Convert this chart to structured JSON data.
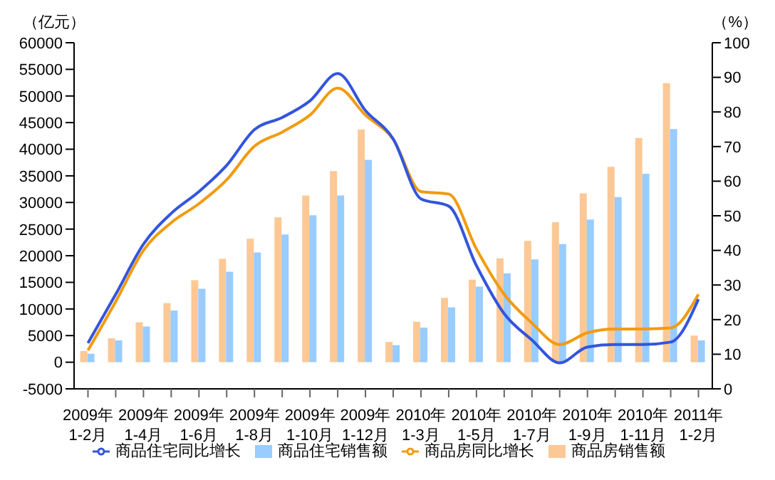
{
  "chart_data": {
    "type": "bar",
    "ylabel": "（亿元）",
    "y2label": "（%）",
    "categories": [
      "2009年\n1-2月",
      null,
      "2009年\n1-4月",
      null,
      "2009年\n1-6月",
      null,
      "2009年\n1-8月",
      null,
      "2009年\n1-10月",
      null,
      "2009年\n1-12月",
      null,
      "2010年\n1-3月",
      null,
      "2010年\n1-5月",
      null,
      "2010年\n1-7月",
      null,
      "2010年\n1-9月",
      null,
      "2010年\n1-11月",
      null,
      "2011年\n1-2月"
    ],
    "series": [
      {
        "name": "商品房销售额",
        "color": "#fcc896",
        "values": [
          2100,
          4500,
          7500,
          11100,
          15400,
          19400,
          23200,
          27200,
          31300,
          35900,
          43700,
          3800,
          7600,
          12100,
          15500,
          19500,
          22800,
          26300,
          31700,
          36700,
          42100,
          52400,
          5000
        ]
      },
      {
        "name": "商品住宅销售额",
        "color": "#99ccff",
        "values": [
          1600,
          4100,
          6700,
          9700,
          13800,
          17000,
          20600,
          24000,
          27600,
          31300,
          38000,
          3200,
          6500,
          10300,
          14200,
          16700,
          19300,
          22200,
          26800,
          31000,
          35400,
          43800,
          4100
        ]
      },
      {
        "name": "商品房同比增长",
        "type": "line",
        "axis": "y2",
        "color": "#f29b0e",
        "values": [
          11.1,
          25.2,
          40.0,
          48.0,
          53.5,
          60.4,
          70.1,
          74.2,
          79.1,
          86.9,
          79.1,
          72.1,
          57.0,
          56.3,
          40.4,
          27.3,
          19.0,
          12.8,
          16.2,
          17.3,
          17.3,
          17.6,
          27.3
        ]
      },
      {
        "name": "商品住宅同比增长",
        "type": "line",
        "axis": "y2",
        "color": "#3355dd",
        "values": [
          13.2,
          27.3,
          41.8,
          50.7,
          57.0,
          64.6,
          74.9,
          78.4,
          83.2,
          91.1,
          80.4,
          72.2,
          54.9,
          52.8,
          35.6,
          21.7,
          14.1,
          7.5,
          12.1,
          12.8,
          12.8,
          13.5,
          25.9
        ]
      }
    ],
    "ylim": [
      -5000,
      60000
    ],
    "yticks": [
      -5000,
      0,
      5000,
      10000,
      15000,
      20000,
      25000,
      30000,
      35000,
      40000,
      45000,
      50000,
      55000,
      60000
    ],
    "y2lim": [
      0,
      100
    ],
    "y2ticks": [
      0,
      10,
      20,
      30,
      40,
      50,
      60,
      70,
      80,
      90,
      100
    ],
    "legend": "bottom",
    "marker": "none"
  }
}
